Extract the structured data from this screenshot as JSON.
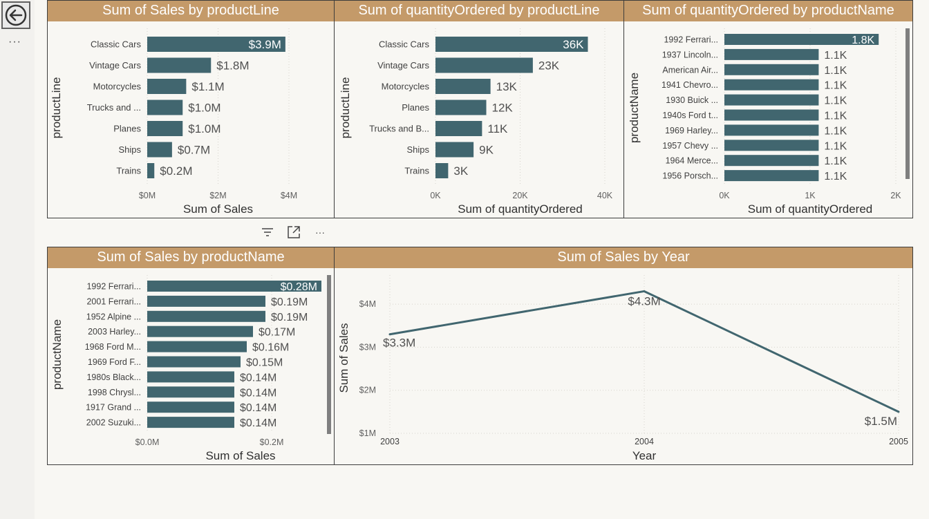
{
  "chart_data": [
    {
      "id": "v1",
      "type": "bar",
      "title": "Sum of Sales by productLine",
      "xlabel": "Sum of Sales",
      "ylabel": "productLine",
      "categories": [
        "Classic Cars",
        "Vintage Cars",
        "Motorcycles",
        "Trucks and ...",
        "Planes",
        "Ships",
        "Trains"
      ],
      "values": [
        3.9,
        1.8,
        1.1,
        1.0,
        1.0,
        0.7,
        0.2
      ],
      "data_labels": [
        "$3.9M",
        "$1.8M",
        "$1.1M",
        "$1.0M",
        "$1.0M",
        "$0.7M",
        "$0.2M"
      ],
      "xlim": [
        0,
        4
      ],
      "xticks": [
        0,
        2,
        4
      ],
      "xtick_labels": [
        "$0M",
        "$2M",
        "$4M"
      ],
      "grid": true,
      "bar_color": "#41666f"
    },
    {
      "id": "v2",
      "type": "bar",
      "title": "Sum of quantityOrdered by productLine",
      "xlabel": "Sum of quantityOrdered",
      "ylabel": "productLine",
      "categories": [
        "Classic Cars",
        "Vintage Cars",
        "Motorcycles",
        "Planes",
        "Trucks and B...",
        "Ships",
        "Trains"
      ],
      "values": [
        36,
        23,
        13,
        12,
        11,
        9,
        3
      ],
      "data_labels": [
        "36K",
        "23K",
        "13K",
        "12K",
        "11K",
        "9K",
        "3K"
      ],
      "xlim": [
        0,
        40
      ],
      "xticks": [
        0,
        20,
        40
      ],
      "xtick_labels": [
        "0K",
        "20K",
        "40K"
      ],
      "grid": true,
      "bar_color": "#41666f"
    },
    {
      "id": "v3",
      "type": "bar",
      "title": "Sum of quantityOrdered by productName",
      "xlabel": "Sum of quantityOrdered",
      "ylabel": "productName",
      "categories": [
        "1992 Ferrari...",
        "1937 Lincoln...",
        "American Air...",
        "1941 Chevro...",
        "1930 Buick ...",
        "1940s Ford t...",
        "1969 Harley...",
        "1957 Chevy ...",
        "1964 Merce...",
        "1956 Porsch..."
      ],
      "values": [
        1.8,
        1.1,
        1.1,
        1.1,
        1.1,
        1.1,
        1.1,
        1.1,
        1.1,
        1.1
      ],
      "data_labels": [
        "1.8K",
        "1.1K",
        "1.1K",
        "1.1K",
        "1.1K",
        "1.1K",
        "1.1K",
        "1.1K",
        "1.1K",
        "1.1K"
      ],
      "xlim": [
        0,
        2
      ],
      "xticks": [
        0,
        1,
        2
      ],
      "xtick_labels": [
        "0K",
        "1K",
        "2K"
      ],
      "grid": true,
      "scrollbar": true,
      "bar_color": "#41666f"
    },
    {
      "id": "v4",
      "type": "bar",
      "title": "Sum of Sales by productName",
      "xlabel": "Sum of Sales",
      "ylabel": "productName",
      "categories": [
        "1992 Ferrari...",
        "2001 Ferrari...",
        "1952 Alpine ...",
        "2003 Harley...",
        "1968 Ford M...",
        "1969 Ford F...",
        "1980s Black...",
        "1998 Chrysl...",
        "1917 Grand ...",
        "2002 Suzuki..."
      ],
      "values": [
        0.28,
        0.19,
        0.19,
        0.17,
        0.16,
        0.15,
        0.14,
        0.14,
        0.14,
        0.14
      ],
      "data_labels": [
        "$0.28M",
        "$0.19M",
        "$0.19M",
        "$0.17M",
        "$0.16M",
        "$0.15M",
        "$0.14M",
        "$0.14M",
        "$0.14M",
        "$0.14M"
      ],
      "xlim": [
        0,
        0.3
      ],
      "xticks": [
        0,
        0.2
      ],
      "xtick_labels": [
        "$0.0M",
        "$0.2M"
      ],
      "grid": true,
      "scrollbar": true,
      "bar_color": "#41666f"
    },
    {
      "id": "v5",
      "type": "line",
      "title": "Sum of Sales by Year",
      "xlabel": "Year",
      "ylabel": "Sum of Sales",
      "x": [
        2003,
        2004,
        2005
      ],
      "xtick_labels": [
        "2003",
        "2004",
        "2005"
      ],
      "values": [
        3.3,
        4.3,
        1.5
      ],
      "data_labels": [
        "$3.3M",
        "$4.3M",
        "$1.5M"
      ],
      "ylim": [
        1,
        4.5
      ],
      "yticks": [
        1,
        2,
        3,
        4
      ],
      "ytick_labels": [
        "$1M",
        "$2M",
        "$3M",
        "$4M"
      ],
      "grid": true,
      "line_color": "#41666f"
    }
  ],
  "toolbar": {
    "page_more_label": "···",
    "visual_more_label": "···"
  }
}
